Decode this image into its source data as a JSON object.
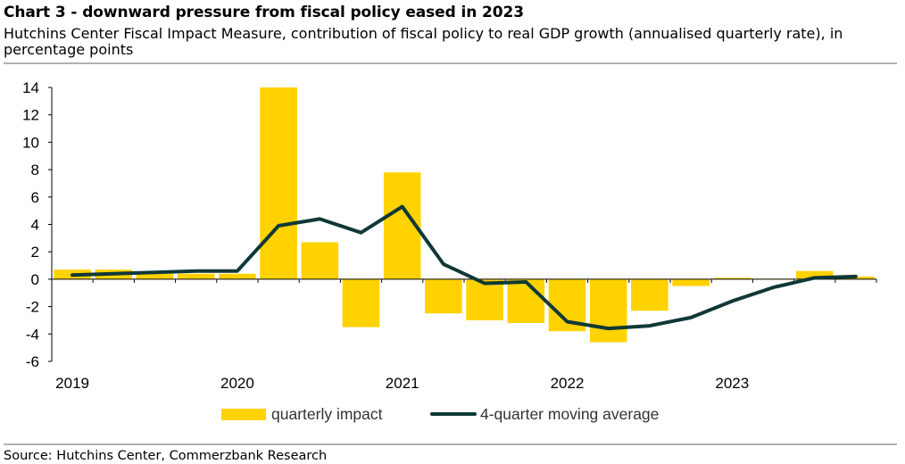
{
  "header": {
    "title": "Chart 3 - downward pressure from fiscal policy eased in 2023",
    "subtitle": "Hutchins Center Fiscal Impact Measure, contribution of fiscal policy to real GDP growth (annualised quarterly rate), in percentage points"
  },
  "footer": {
    "source": "Source: Hutchins Center, Commerzbank Research"
  },
  "colors": {
    "bar": "#ffd200",
    "line": "#0f3837",
    "axis": "#000000"
  },
  "chart_data": {
    "type": "bar",
    "title": "Chart 3 - downward pressure from fiscal policy eased in 2023",
    "xlabel": "",
    "ylabel": "",
    "ylim": [
      -6,
      14
    ],
    "yticks": [
      14,
      12,
      10,
      8,
      6,
      4,
      2,
      0,
      -2,
      -4,
      -6
    ],
    "year_labels": [
      "2019",
      "2020",
      "2021",
      "2022",
      "2023"
    ],
    "categories": [
      "2019Q1",
      "2019Q2",
      "2019Q3",
      "2019Q4",
      "2020Q1",
      "2020Q2",
      "2020Q3",
      "2020Q4",
      "2021Q1",
      "2021Q2",
      "2021Q3",
      "2021Q4",
      "2022Q1",
      "2022Q2",
      "2022Q3",
      "2022Q4",
      "2023Q1",
      "2023Q2",
      "2023Q3",
      "2023Q4"
    ],
    "grid": false,
    "legend_position": "bottom",
    "series": [
      {
        "name": "quarterly impact",
        "type": "bar",
        "values": [
          0.7,
          0.7,
          0.4,
          0.4,
          0.4,
          14.0,
          2.7,
          -3.5,
          7.8,
          -2.5,
          -3.0,
          -3.2,
          -3.8,
          -4.6,
          -2.3,
          -0.5,
          0.1,
          0.0,
          0.6,
          0.2
        ]
      },
      {
        "name": "4-quarter moving average",
        "type": "line",
        "values": [
          0.3,
          0.4,
          0.5,
          0.6,
          0.6,
          3.9,
          4.4,
          3.4,
          5.3,
          1.1,
          -0.3,
          -0.2,
          -3.1,
          -3.6,
          -3.4,
          -2.8,
          -1.6,
          -0.6,
          0.1,
          0.2
        ]
      }
    ]
  }
}
